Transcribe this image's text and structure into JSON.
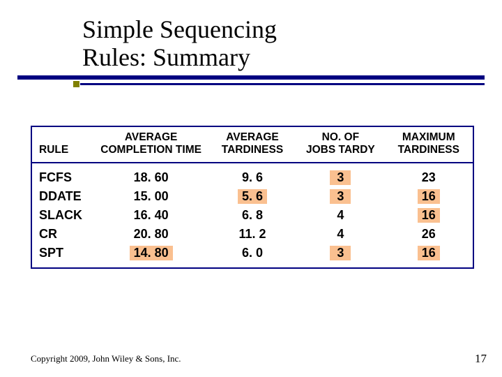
{
  "title_line1": "Simple Sequencing",
  "title_line2": "Rules: Summary",
  "columns": {
    "rule": "RULE",
    "avg_completion": "AVERAGE\nCOMPLETION TIME",
    "avg_tardiness": "AVERAGE\nTARDINESS",
    "no_tardy": "NO. OF\nJOBS TARDY",
    "max_tardiness": "MAXIMUM\nTARDINESS"
  },
  "rows": [
    {
      "rule": "FCFS",
      "avg_completion": "18. 60",
      "avg_tardiness": "9. 6",
      "no_tardy": "3",
      "max_tardiness": "23"
    },
    {
      "rule": "DDATE",
      "avg_completion": "15. 00",
      "avg_tardiness": "5. 6",
      "no_tardy": "3",
      "max_tardiness": "16"
    },
    {
      "rule": "SLACK",
      "avg_completion": "16. 40",
      "avg_tardiness": "6. 8",
      "no_tardy": "4",
      "max_tardiness": "16"
    },
    {
      "rule": "CR",
      "avg_completion": "20. 80",
      "avg_tardiness": "11. 2",
      "no_tardy": "4",
      "max_tardiness": "26"
    },
    {
      "rule": "SPT",
      "avg_completion": "14. 80",
      "avg_tardiness": "6. 0",
      "no_tardy": "3",
      "max_tardiness": "16"
    }
  ],
  "highlights": {
    "avg_completion_row": 4,
    "avg_tardiness_row": 1,
    "no_tardy_rows": [
      0,
      1,
      4
    ],
    "max_tardiness_rows": [
      1,
      2,
      4
    ]
  },
  "styling": {
    "highlight_bg": "#fac090",
    "rule_color": "#000080",
    "accent_square_color": "#808000",
    "body_font": "Times New Roman",
    "table_font": "Arial",
    "title_fontsize_pt": 27,
    "header_fontsize_pt": 12,
    "cell_fontsize_pt": 14
  },
  "copyright": "Copyright 2009, John Wiley & Sons, Inc.",
  "page_number": "17"
}
